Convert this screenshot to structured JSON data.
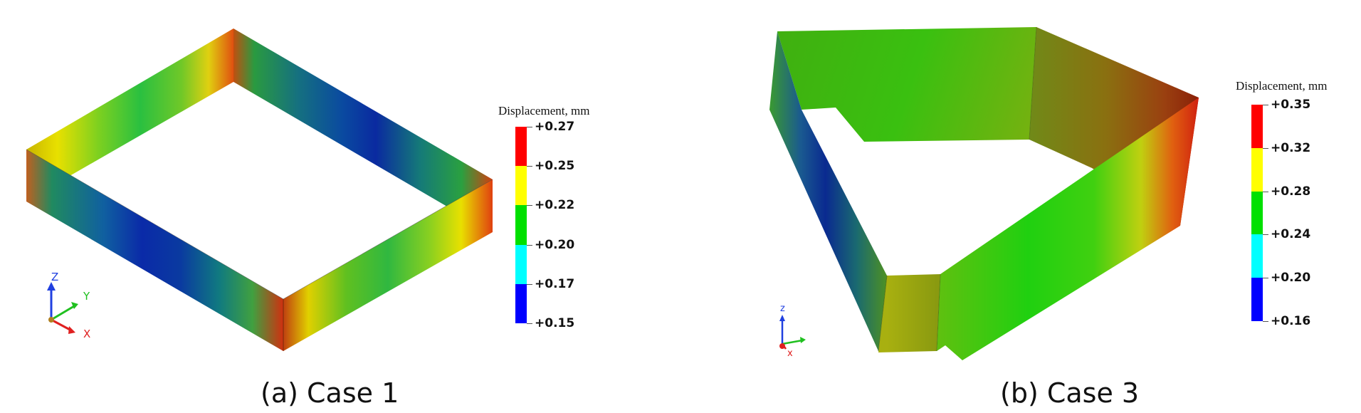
{
  "panel_a": {
    "caption": "(a) Case 1",
    "legend": {
      "title": "Displacement, mm",
      "labels": [
        "+0.27",
        "+0.25",
        "+0.22",
        "+0.20",
        "+0.17",
        "+0.15"
      ],
      "colors": [
        "#ff0000",
        "#ffff00",
        "#00e000",
        "#00ffff",
        "#0000ff"
      ]
    },
    "axes": {
      "z": "Z",
      "y": "Y",
      "x": "X"
    }
  },
  "panel_b": {
    "caption": "(b) Case 3",
    "legend": {
      "title": "Displacement, mm",
      "labels": [
        "+0.35",
        "+0.32",
        "+0.28",
        "+0.24",
        "+0.20",
        "+0.16"
      ],
      "colors": [
        "#ff0000",
        "#ffff00",
        "#00e000",
        "#00ffff",
        "#0000ff"
      ]
    },
    "axes": {
      "z": "z",
      "x": "x"
    }
  }
}
